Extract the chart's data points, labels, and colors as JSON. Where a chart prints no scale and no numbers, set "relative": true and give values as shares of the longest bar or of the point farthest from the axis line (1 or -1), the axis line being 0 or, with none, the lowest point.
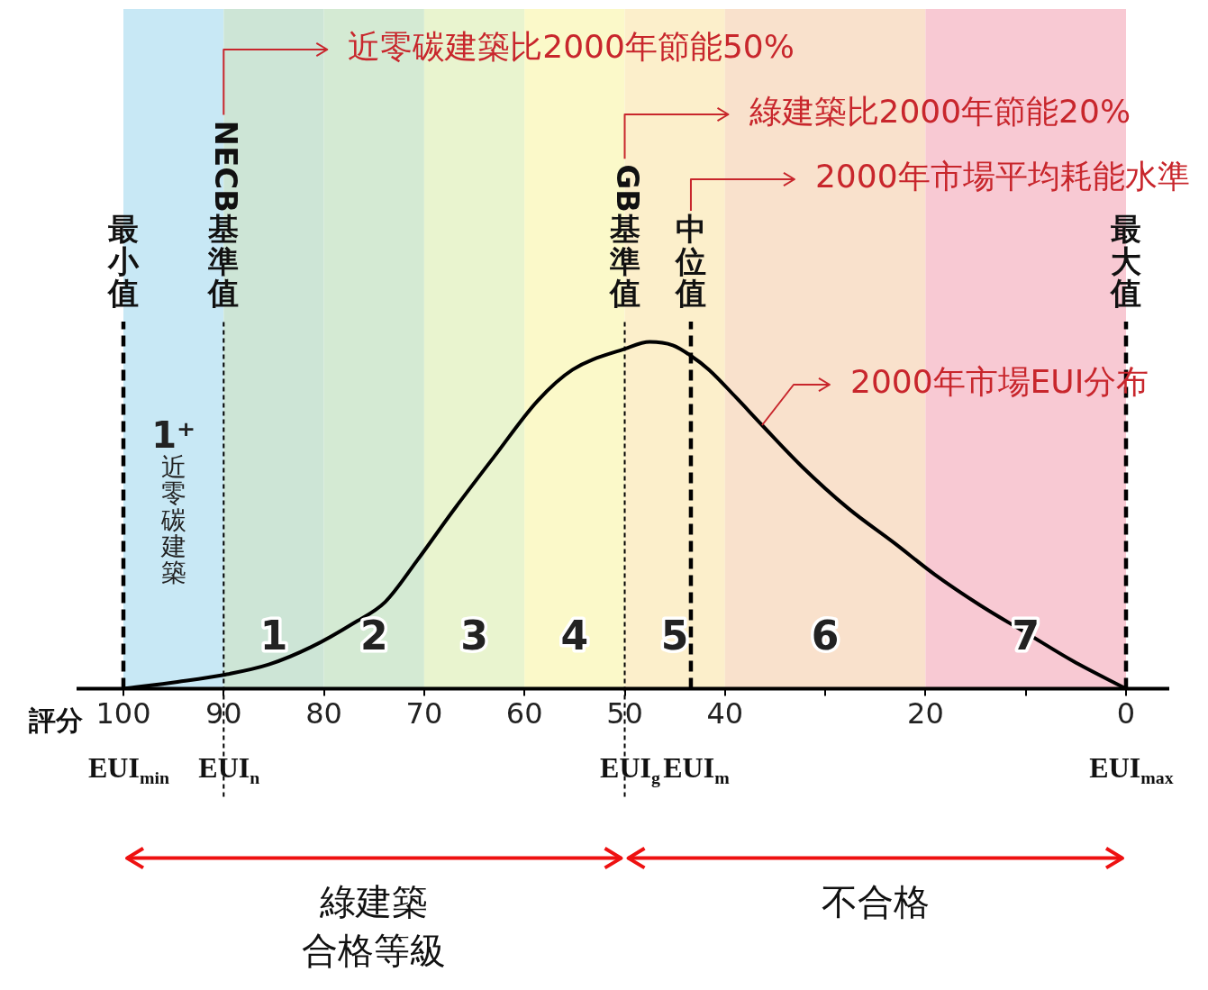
{
  "chart_data": {
    "type": "line",
    "relative": true,
    "color": "#000000",
    "xlabel": "評分",
    "x": [
      100,
      94.6,
      90,
      85.5,
      81.3,
      77,
      73.9,
      70.7,
      67.2,
      63,
      58.7,
      55.2,
      50,
      47.5,
      45.2,
      43.4,
      41.6,
      38.9,
      36.3,
      32.3,
      27.7,
      23.1,
      19.1,
      14.5,
      9.9,
      5.3,
      0
    ],
    "values": [
      0,
      0.02,
      0.04,
      0.07,
      0.12,
      0.19,
      0.25,
      0.37,
      0.51,
      0.67,
      0.83,
      0.92,
      0.98,
      1,
      0.99,
      0.96,
      0.92,
      0.84,
      0.76,
      0.64,
      0.52,
      0.42,
      0.33,
      0.24,
      0.16,
      0.08,
      0
    ],
    "xlim": [
      100,
      0
    ],
    "xticks": [
      100,
      90,
      80,
      70,
      60,
      50,
      40,
      {
        "value": 30,
        "label": null
      },
      20,
      {
        "value": 10,
        "label": null
      },
      0
    ],
    "bands": [
      {
        "axis": "x",
        "from": 100,
        "to": 90,
        "label": "1⁺\n近零碳建築",
        "color": "#c8e8f5"
      },
      {
        "axis": "x",
        "from": 90,
        "to": 80,
        "label": "1",
        "color": "#cde5d6"
      },
      {
        "axis": "x",
        "from": 80,
        "to": 70,
        "label": "2",
        "color": "#d4ead3"
      },
      {
        "axis": "x",
        "from": 70,
        "to": 60,
        "label": "3",
        "color": "#e9f4cf"
      },
      {
        "axis": "x",
        "from": 60,
        "to": 50,
        "label": "4",
        "color": "#fbf9c9"
      },
      {
        "axis": "x",
        "from": 50,
        "to": 40,
        "label": "5",
        "color": "#fcefcb"
      },
      {
        "axis": "x",
        "from": 40,
        "to": 20,
        "label": "6",
        "color": "#f9e1cc"
      },
      {
        "axis": "x",
        "from": 20,
        "to": 0,
        "label": "7",
        "color": "#f8c9d3"
      }
    ],
    "ref_lines": [
      {
        "axis": "x",
        "value": 100,
        "label": "最小值",
        "line_style": "dashed"
      },
      {
        "axis": "x",
        "value": 90,
        "label": "NECB基準值",
        "line_style": "dotted"
      },
      {
        "axis": "x",
        "value": 50,
        "label": "GB基準值",
        "line_style": "dotted"
      },
      {
        "axis": "x",
        "value": 43.4,
        "label": "中位值",
        "line_style": "dashed"
      },
      {
        "axis": "x",
        "value": 0,
        "label": "最大值",
        "line_style": "dashed"
      }
    ],
    "annotations": [
      "近零碳建築比2000年節能50%",
      "綠建築比2000年節能20%",
      "2000年市場平均耗能水準",
      "綠建築",
      "合格等級",
      "不合格",
      {
        "text": "2000年市場EUI分布",
        "x": 36.3,
        "y": 0.76
      },
      {
        "text": "EUI$_{min}$",
        "x": 100,
        "y": 0
      },
      {
        "text": "EUI$_{n}$",
        "x": 90,
        "y": 0
      },
      {
        "text": "EUI$_{g}$",
        "x": 50,
        "y": 0
      },
      {
        "text": "EUI$_{m}$",
        "x": 43.4,
        "y": 0
      },
      {
        "text": "EUI$_{max}$",
        "x": 0,
        "y": 0
      }
    ]
  }
}
